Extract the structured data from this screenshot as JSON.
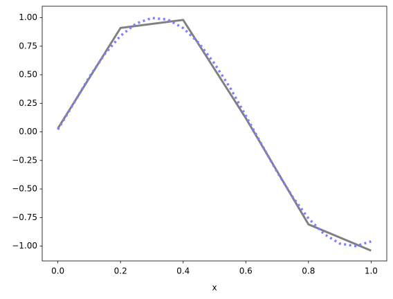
{
  "chart_data": {
    "type": "line",
    "x_label": "x",
    "series": [
      {
        "color": "#808080",
        "style": "solid",
        "x": [
          0,
          0.2,
          0.4,
          0.6,
          0.8,
          1.0
        ],
        "values": [
          0.03,
          0.91,
          0.98,
          0.12,
          -0.81,
          -1.04
        ]
      },
      {
        "color": "#7f7fff",
        "style": "dotted",
        "x": [
          0,
          0.05,
          0.1,
          0.15,
          0.2,
          0.25,
          0.3,
          0.35,
          0.4,
          0.45,
          0.5,
          0.55,
          0.6,
          0.65,
          0.7,
          0.75,
          0.8,
          0.85,
          0.9,
          0.95,
          1.0
        ],
        "values": [
          0.02,
          0.247,
          0.479,
          0.682,
          0.841,
          0.949,
          0.997,
          0.984,
          0.909,
          0.778,
          0.598,
          0.386,
          0.141,
          -0.108,
          -0.351,
          -0.572,
          -0.757,
          -0.895,
          -0.978,
          -1.0,
          -0.959
        ]
      }
    ],
    "xlim": [
      -0.05,
      1.05
    ],
    "ylim": [
      -1.13,
      1.1
    ],
    "xticks": [
      {
        "value": 0,
        "label": "0.0"
      },
      {
        "value": 0.2,
        "label": "0.2"
      },
      {
        "value": 0.4,
        "label": "0.4"
      },
      {
        "value": 0.6,
        "label": "0.6"
      },
      {
        "value": 0.8,
        "label": "0.8"
      },
      {
        "value": 1.0,
        "label": "1.0"
      }
    ],
    "yticks": [
      {
        "value": -1,
        "label": "−1.00"
      },
      {
        "value": -0.75,
        "label": "−0.75"
      },
      {
        "value": -0.5,
        "label": "−0.50"
      },
      {
        "value": -0.25,
        "label": "−0.25"
      },
      {
        "value": 0,
        "label": "0.00"
      },
      {
        "value": 0.25,
        "label": "0.25"
      },
      {
        "value": 0.5,
        "label": "0.50"
      },
      {
        "value": 0.75,
        "label": "0.75"
      },
      {
        "value": 1,
        "label": "1.00"
      }
    ]
  }
}
